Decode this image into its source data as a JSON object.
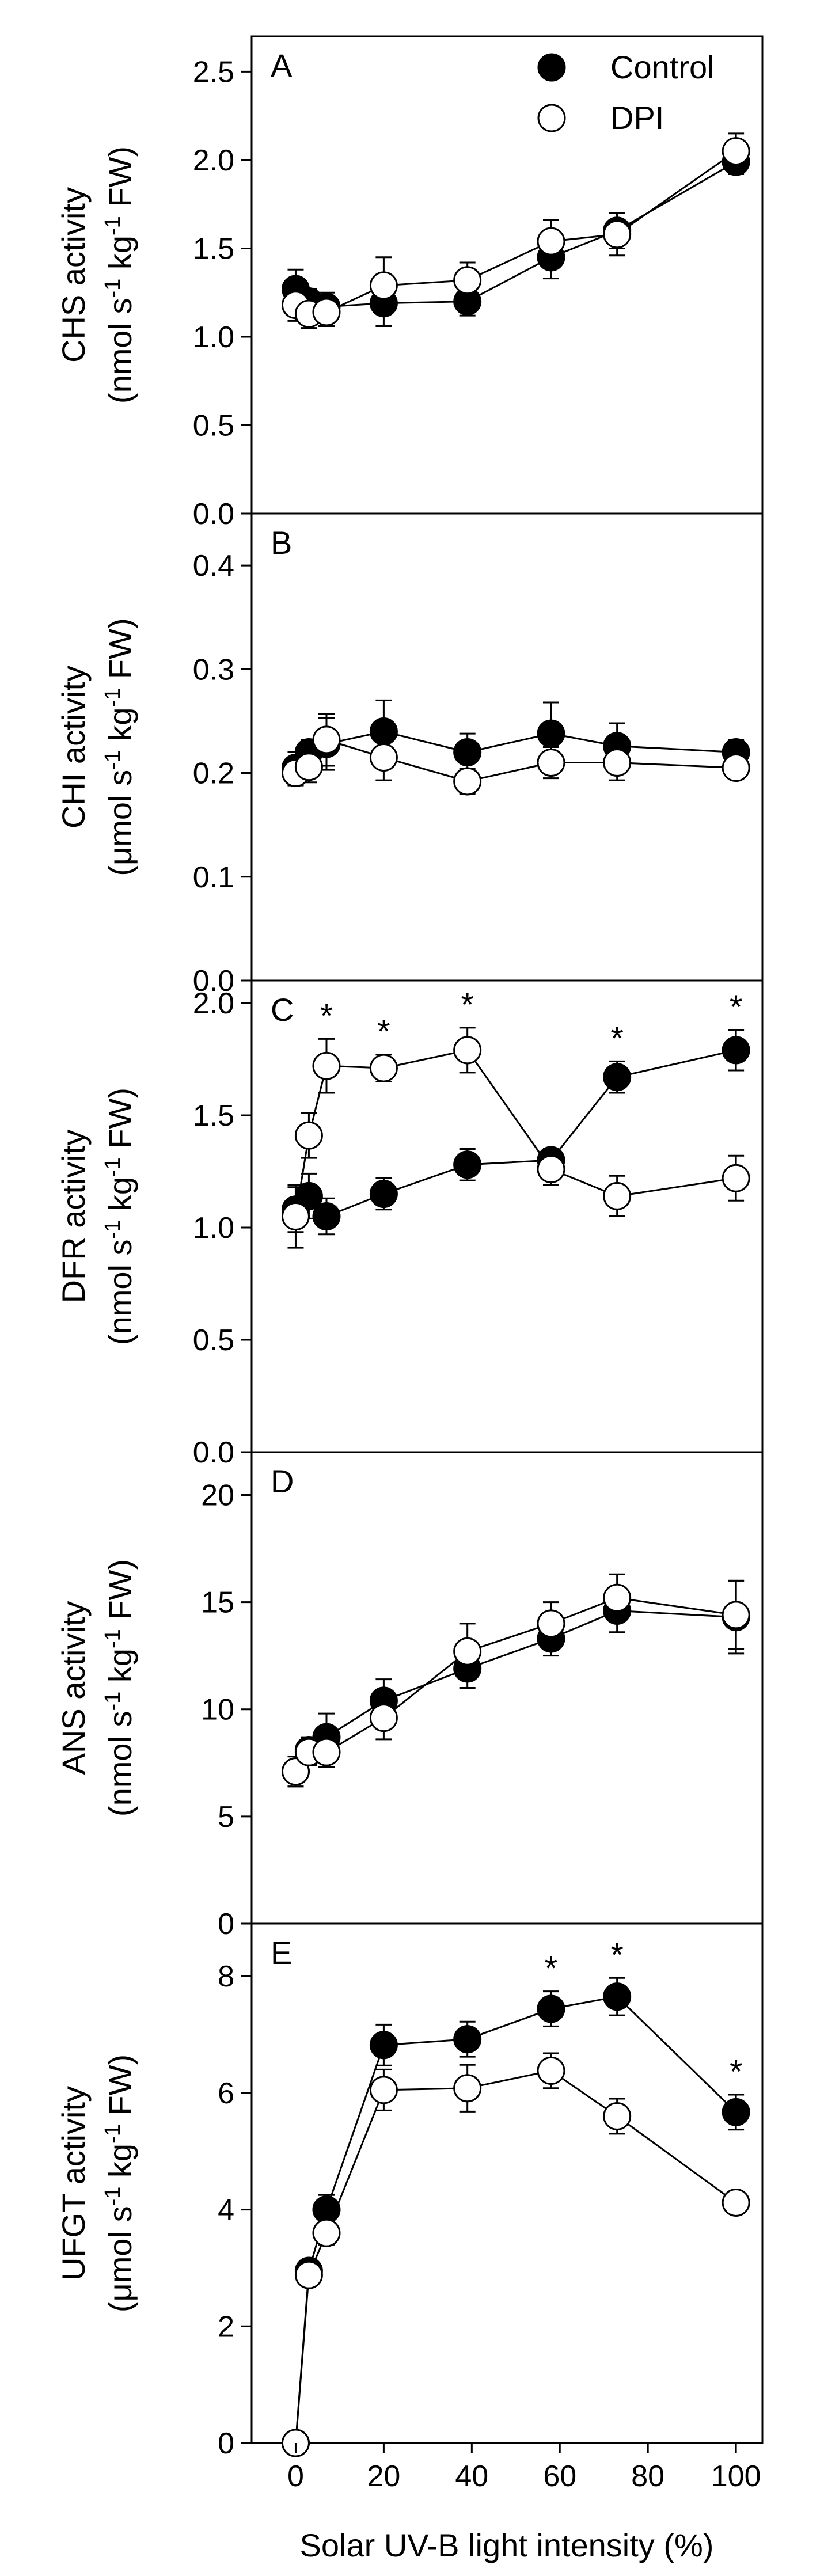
{
  "chart_data": {
    "type": "line",
    "xlabel": "Solar UV-B light intensity (%)",
    "x_ticks": [
      "0",
      "20",
      "40",
      "60",
      "80",
      "100"
    ],
    "xlim": [
      -10,
      106
    ],
    "legend": {
      "position": "top-right",
      "entries": [
        {
          "name": "Control",
          "marker": "filled-circle"
        },
        {
          "name": "DPI",
          "marker": "open-circle"
        }
      ]
    },
    "panels": [
      {
        "letter": "A",
        "ylabel_line1": "CHS activity",
        "ylabel_line2": "(nmol s-1 kg-1 FW)",
        "ylabel_main": "(nmol s",
        "ylabel_mid": " kg",
        "ylabel_end": " FW)",
        "superscript": "-1",
        "ylim": [
          0,
          2.7
        ],
        "y_ticks": [
          "0.0",
          "0.5",
          "1.0",
          "1.5",
          "2.0",
          "2.5"
        ],
        "significance": [],
        "series": [
          {
            "name": "Control",
            "x": [
              0,
              3,
              7,
              20,
              39,
              58,
              73,
              100
            ],
            "values": [
              1.27,
              1.2,
              1.17,
              1.19,
              1.2,
              1.45,
              1.6,
              1.99
            ],
            "err": [
              0.11,
              0.07,
              0.08,
              0.13,
              0.08,
              0.12,
              0.1,
              0.07
            ]
          },
          {
            "name": "DPI",
            "x": [
              0,
              3,
              7,
              20,
              39,
              58,
              73,
              100
            ],
            "values": [
              1.18,
              1.13,
              1.14,
              1.29,
              1.32,
              1.54,
              1.58,
              2.05
            ],
            "err": [
              0.09,
              0.08,
              0.08,
              0.16,
              0.1,
              0.12,
              0.12,
              0.1
            ]
          }
        ]
      },
      {
        "letter": "B",
        "ylabel_line1": "CHI activity",
        "ylabel_line2": "(μmol s-1 kg-1 FW)",
        "ylabel_main": "(μmol s",
        "ylabel_mid": " kg",
        "ylabel_end": " FW)",
        "superscript": "-1",
        "ylim": [
          0,
          0.45
        ],
        "y_ticks": [
          "0.0",
          "0.1",
          "0.2",
          "0.3",
          "0.4"
        ],
        "significance": [],
        "series": [
          {
            "name": "Control",
            "x": [
              0,
              3,
              7,
              20,
              39,
              58,
              73,
              100
            ],
            "values": [
              0.205,
              0.22,
              0.228,
              0.24,
              0.22,
              0.238,
              0.226,
              0.22
            ],
            "err": [
              0.015,
              0.012,
              0.025,
              0.03,
              0.018,
              0.03,
              0.022,
              0.012
            ]
          },
          {
            "name": "DPI",
            "x": [
              0,
              3,
              7,
              20,
              39,
              58,
              73,
              100
            ],
            "values": [
              0.2,
              0.206,
              0.232,
              0.215,
              0.192,
              0.21,
              0.21,
              0.205
            ],
            "err": [
              0.012,
              0.015,
              0.025,
              0.022,
              0.012,
              0.015,
              0.017,
              0.01
            ]
          }
        ]
      },
      {
        "letter": "C",
        "ylabel_line1": "DFR activity",
        "ylabel_line2": "(nmol s-1 kg-1 FW)",
        "ylabel_main": "(nmol s",
        "ylabel_mid": " kg",
        "ylabel_end": " FW)",
        "superscript": "-1",
        "ylim": [
          0,
          2.1
        ],
        "y_ticks": [
          "0.0",
          "0.5",
          "1.0",
          "1.5",
          "2.0"
        ],
        "significance": [
          7,
          20,
          39,
          73,
          100
        ],
        "series": [
          {
            "name": "Control",
            "x": [
              0,
              3,
              7,
              20,
              39,
              58,
              73,
              100
            ],
            "values": [
              1.08,
              1.14,
              1.05,
              1.15,
              1.28,
              1.3,
              1.67,
              1.79
            ],
            "err": [
              0.1,
              0.1,
              0.08,
              0.07,
              0.07,
              0.05,
              0.07,
              0.09
            ]
          },
          {
            "name": "DPI",
            "x": [
              0,
              3,
              7,
              20,
              39,
              58,
              73,
              100
            ],
            "values": [
              1.05,
              1.41,
              1.72,
              1.71,
              1.79,
              1.26,
              1.14,
              1.22
            ],
            "err": [
              0.14,
              0.1,
              0.12,
              0.06,
              0.1,
              0.07,
              0.09,
              0.1
            ]
          }
        ]
      },
      {
        "letter": "D",
        "ylabel_line1": "ANS activity",
        "ylabel_line2": "(nmol s-1 kg-1 FW)",
        "ylabel_main": "(nmol s",
        "ylabel_mid": " kg",
        "ylabel_end": " FW)",
        "superscript": "-1",
        "ylim": [
          0,
          22
        ],
        "y_ticks": [
          "0",
          "5",
          "10",
          "15",
          "20"
        ],
        "significance": [],
        "series": [
          {
            "name": "Control",
            "x": [
              0,
              3,
              7,
              20,
              39,
              58,
              73,
              100
            ],
            "values": [
              7.1,
              8.1,
              8.7,
              10.4,
              11.9,
              13.3,
              14.6,
              14.3
            ],
            "err": [
              0.7,
              0.6,
              1.1,
              1.0,
              0.9,
              0.8,
              1.0,
              1.7
            ]
          },
          {
            "name": "DPI",
            "x": [
              0,
              3,
              7,
              20,
              39,
              58,
              73,
              100
            ],
            "values": [
              7.1,
              8.0,
              8.0,
              9.6,
              12.7,
              14.0,
              15.2,
              14.4
            ],
            "err": [
              0.7,
              0.6,
              0.7,
              1.0,
              1.3,
              1.0,
              1.1,
              1.6
            ]
          }
        ]
      },
      {
        "letter": "E",
        "ylabel_line1": "UFGT activity",
        "ylabel_line2": "(μmol s-1 kg-1 FW)",
        "ylabel_main": "(μmol s",
        "ylabel_mid": " kg",
        "ylabel_end": " FW)",
        "superscript": "-1",
        "ylim": [
          0,
          8.9
        ],
        "y_ticks": [
          "0",
          "2",
          "4",
          "6",
          "8"
        ],
        "significance": [
          58,
          73,
          100
        ],
        "series": [
          {
            "name": "Control",
            "x": [
              0,
              3,
              7,
              20,
              39,
              58,
              73,
              100
            ],
            "values": [
              0.0,
              2.95,
              4.0,
              6.82,
              6.92,
              7.44,
              7.65,
              5.67
            ],
            "err": [
              0.0,
              0.15,
              0.25,
              0.35,
              0.3,
              0.3,
              0.32,
              0.3
            ]
          },
          {
            "name": "DPI",
            "x": [
              0,
              3,
              7,
              20,
              39,
              58,
              73,
              100
            ],
            "values": [
              0.0,
              2.88,
              3.6,
              6.05,
              6.08,
              6.38,
              5.6,
              4.12
            ],
            "err": [
              0.0,
              0.15,
              0.2,
              0.35,
              0.4,
              0.3,
              0.3,
              0.1
            ]
          }
        ]
      }
    ]
  }
}
